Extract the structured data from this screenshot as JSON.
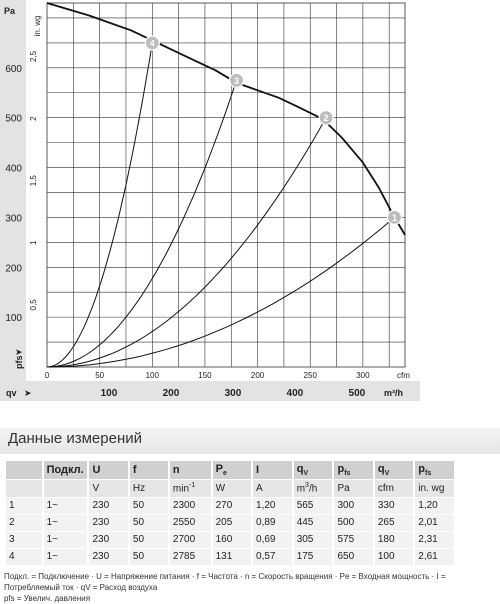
{
  "chart_data": {
    "type": "line",
    "y_unit_left": "Pa",
    "y_unit_right": "in. wg",
    "x_unit_top": "cfm",
    "x_unit_bottom": "m³/h",
    "y_axis_label": "pfs",
    "x_axis_label": "qv",
    "xlim_cfm": [
      0,
      340
    ],
    "ylim_pa": [
      0,
      730
    ],
    "y_ticks_pa": [
      100,
      200,
      300,
      400,
      500,
      600
    ],
    "y_ticks_inwg": [
      "0,5",
      "1",
      "1,5",
      "2",
      "2,5"
    ],
    "y_ticks_inwg_values": [
      0.5,
      1,
      1.5,
      2,
      2.5
    ],
    "x_ticks_cfm": [
      0,
      50,
      100,
      150,
      200,
      250,
      300
    ],
    "x_ticks_m3h": [
      100,
      200,
      300,
      400,
      500
    ],
    "grid": true,
    "fan_curve": [
      [
        0,
        730
      ],
      [
        40,
        705
      ],
      [
        80,
        675
      ],
      [
        100,
        655
      ],
      [
        130,
        625
      ],
      [
        160,
        595
      ],
      [
        180,
        570
      ],
      [
        200,
        555
      ],
      [
        220,
        540
      ],
      [
        240,
        520
      ],
      [
        262,
        497
      ],
      [
        280,
        460
      ],
      [
        300,
        410
      ],
      [
        315,
        360
      ],
      [
        330,
        300
      ],
      [
        340,
        265
      ]
    ],
    "operating_points": [
      {
        "label": "1",
        "cfm": 330,
        "pa": 300
      },
      {
        "label": "2",
        "cfm": 265,
        "pa": 500
      },
      {
        "label": "3",
        "cfm": 180,
        "pa": 575
      },
      {
        "label": "4",
        "cfm": 100,
        "pa": 650
      }
    ]
  },
  "table": {
    "title": "Данные измерений",
    "headers": [
      "",
      "Подкл.",
      "U",
      "f",
      "n",
      "Pe",
      "I",
      "qV",
      "pfs",
      "qV",
      "pfs"
    ],
    "units": [
      "",
      "",
      "V",
      "Hz",
      "min-1",
      "W",
      "A",
      "m3/h",
      "Pa",
      "cfm",
      "in. wg"
    ],
    "rows": [
      [
        "1",
        "1~",
        "230",
        "50",
        "2300",
        "270",
        "1,20",
        "565",
        "300",
        "330",
        "1,20"
      ],
      [
        "2",
        "1~",
        "230",
        "50",
        "2550",
        "205",
        "0,89",
        "445",
        "500",
        "265",
        "2,01"
      ],
      [
        "3",
        "1~",
        "230",
        "50",
        "2700",
        "160",
        "0,69",
        "305",
        "575",
        "180",
        "2,31"
      ],
      [
        "4",
        "1~",
        "230",
        "50",
        "2785",
        "131",
        "0,57",
        "175",
        "650",
        "100",
        "2,61"
      ]
    ]
  },
  "footnote": {
    "line1": "Подкл. = Подключение · U = Напряжение питания · f = Частота · n = Скорость вращения · Pe = Входная мощность · I = Потребляемый ток · qV = Расход воздуха",
    "line2": "pfs = Увелич. давления"
  }
}
